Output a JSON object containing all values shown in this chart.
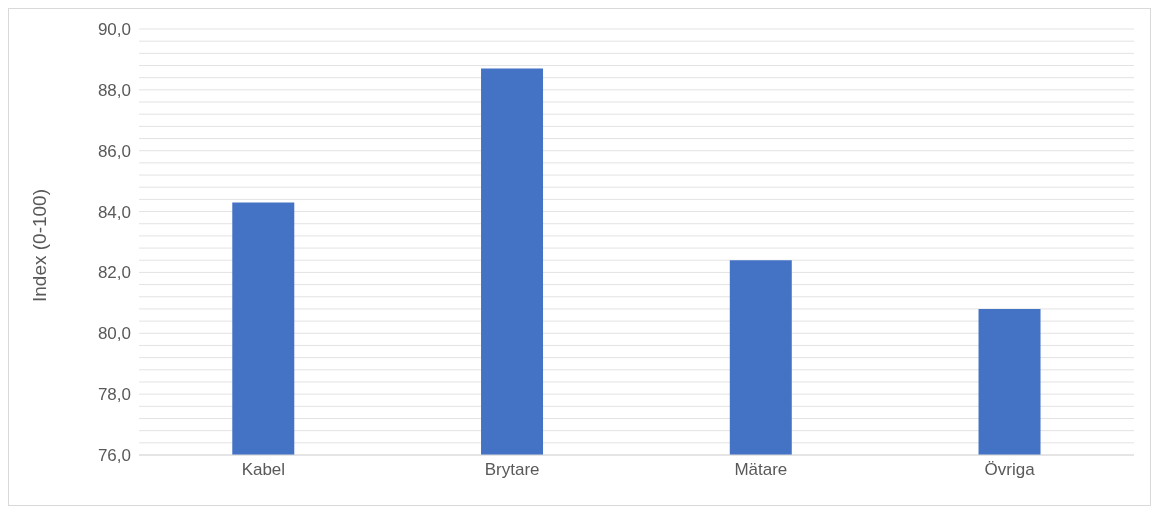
{
  "chart_data": {
    "type": "bar",
    "ylabel": "Index (0-100)",
    "categories": [
      "Kabel",
      "Brytare",
      "Mätare",
      "Övriga"
    ],
    "values": [
      84.3,
      88.7,
      82.4,
      80.8
    ],
    "color": "#4472c4",
    "ylim": [
      76,
      90
    ],
    "yticks": [
      {
        "value": 76,
        "label": "76,0"
      },
      {
        "value": 76.4,
        "label": null
      },
      {
        "value": 76.8,
        "label": null
      },
      {
        "value": 77.2,
        "label": null
      },
      {
        "value": 77.6,
        "label": null
      },
      {
        "value": 78,
        "label": "78,0"
      },
      {
        "value": 78.4,
        "label": null
      },
      {
        "value": 78.8,
        "label": null
      },
      {
        "value": 79.2,
        "label": null
      },
      {
        "value": 79.6,
        "label": null
      },
      {
        "value": 80,
        "label": "80,0"
      },
      {
        "value": 80.4,
        "label": null
      },
      {
        "value": 80.8,
        "label": null
      },
      {
        "value": 81.2,
        "label": null
      },
      {
        "value": 81.6,
        "label": null
      },
      {
        "value": 82,
        "label": "82,0"
      },
      {
        "value": 82.4,
        "label": null
      },
      {
        "value": 82.8,
        "label": null
      },
      {
        "value": 83.2,
        "label": null
      },
      {
        "value": 83.6,
        "label": null
      },
      {
        "value": 84,
        "label": "84,0"
      },
      {
        "value": 84.4,
        "label": null
      },
      {
        "value": 84.8,
        "label": null
      },
      {
        "value": 85.2,
        "label": null
      },
      {
        "value": 85.6,
        "label": null
      },
      {
        "value": 86,
        "label": "86,0"
      },
      {
        "value": 86.4,
        "label": null
      },
      {
        "value": 86.8,
        "label": null
      },
      {
        "value": 87.2,
        "label": null
      },
      {
        "value": 87.6,
        "label": null
      },
      {
        "value": 88,
        "label": "88,0"
      },
      {
        "value": 88.4,
        "label": null
      },
      {
        "value": 88.8,
        "label": null
      },
      {
        "value": 89.2,
        "label": null
      },
      {
        "value": 89.6,
        "label": null
      },
      {
        "value": 90,
        "label": "90,0"
      }
    ],
    "grid": "y"
  }
}
